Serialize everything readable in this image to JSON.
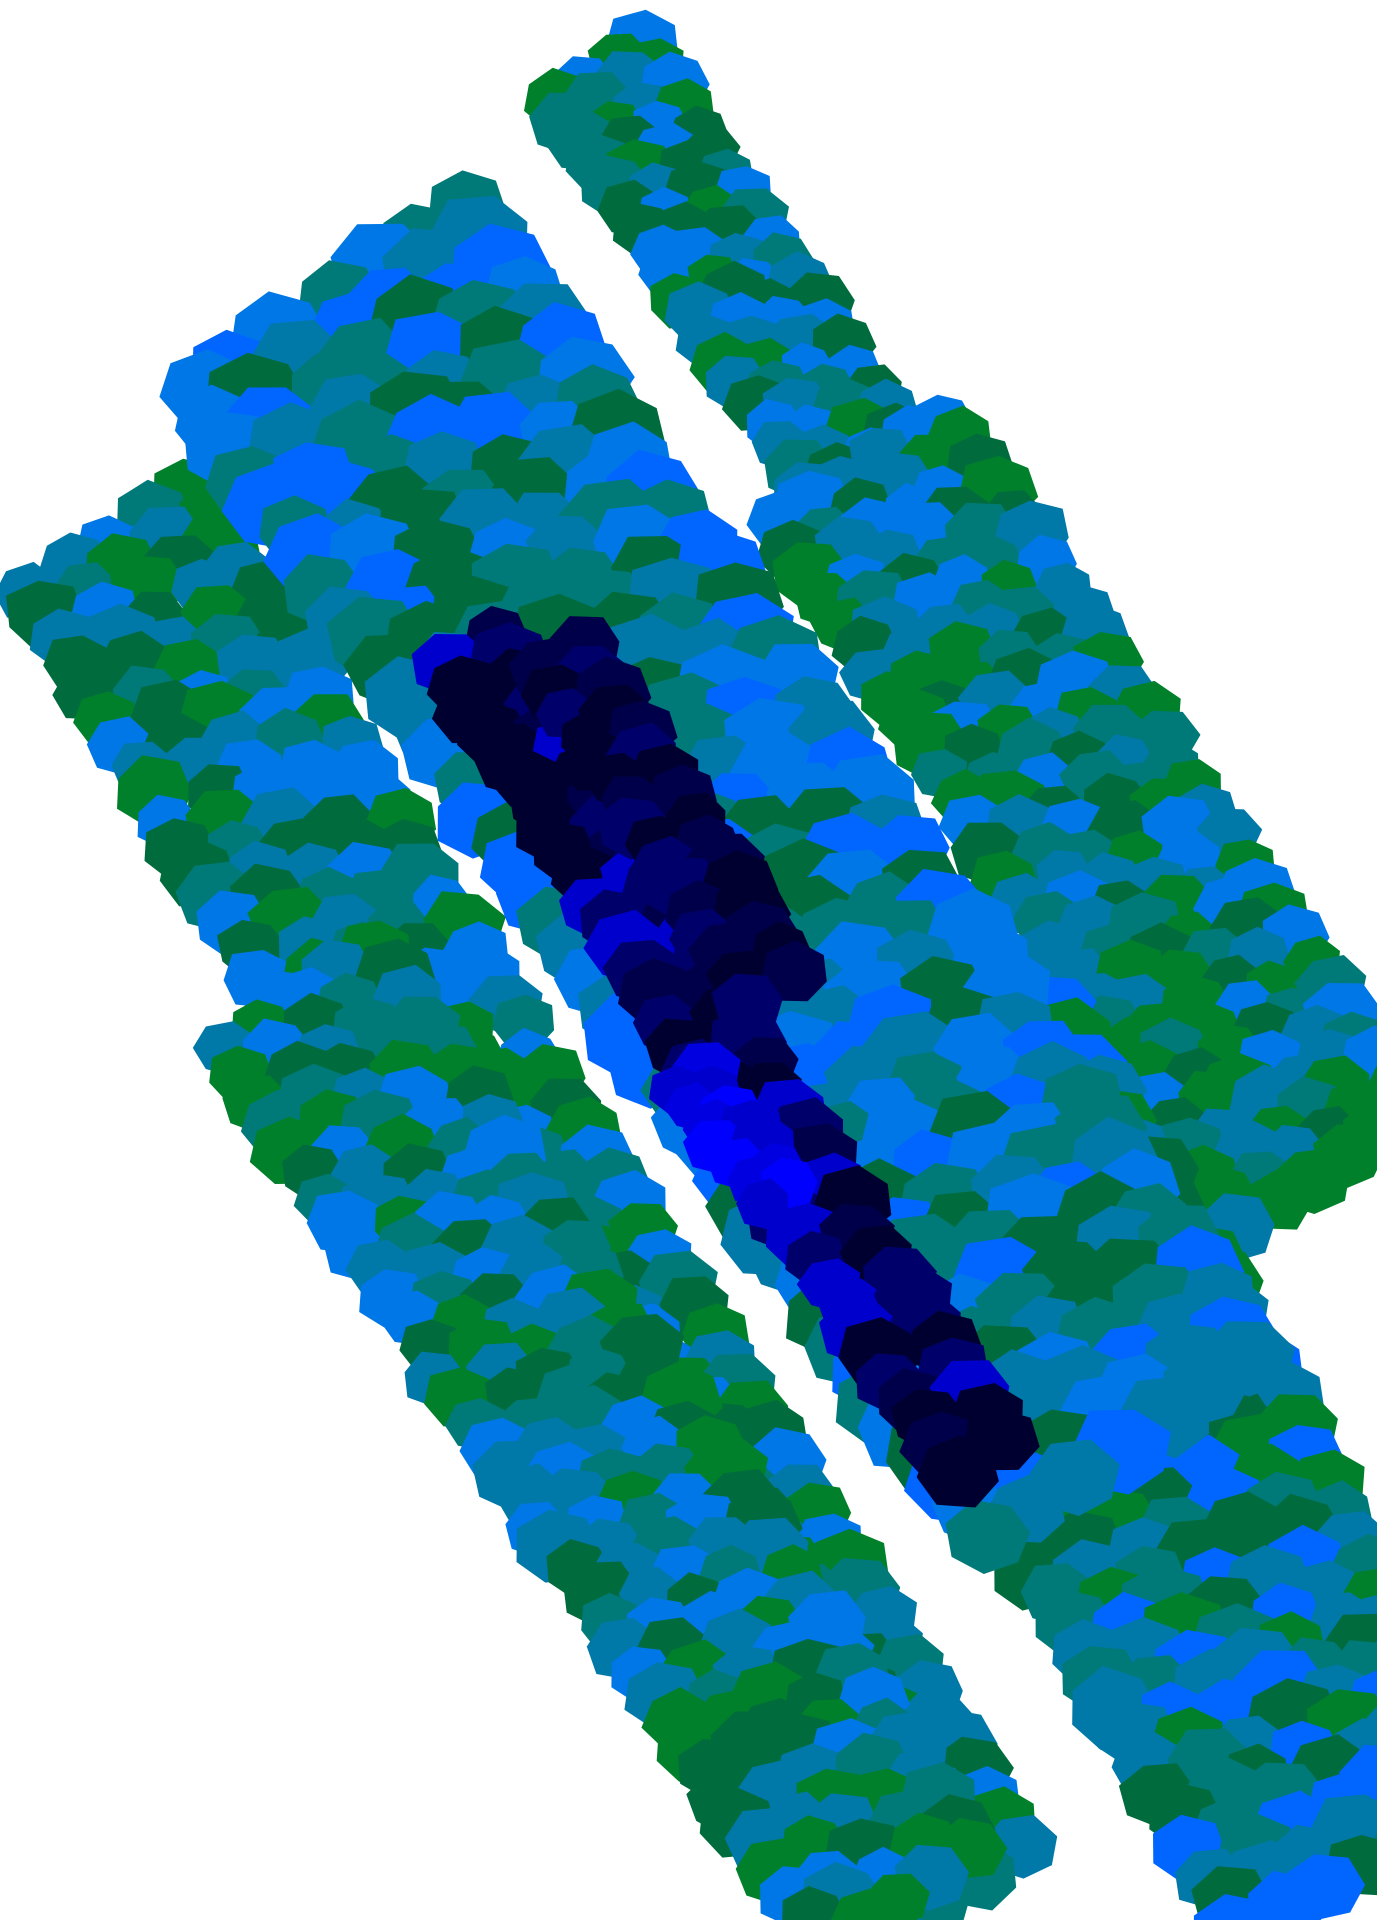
{
  "image": {
    "background": "#ffffff",
    "palette": {
      "deep_green": "#006b3c",
      "green": "#00802a",
      "teal": "#007a78",
      "teal_blue": "#0078a8",
      "sky_blue": "#0077e6",
      "bright_blue": "#0066ff",
      "royal_blue": "#0000cc",
      "navy": "#00006a",
      "midnight": "#000030",
      "pure_blue": "#0000ff"
    },
    "helices": [
      {
        "name": "outer-left-helix",
        "colors": [
          "#007a78",
          "#00802a",
          "#0078a8",
          "#0077e6",
          "#006b3c"
        ]
      },
      {
        "name": "upper-back-helix",
        "colors": [
          "#006b3c",
          "#00802a",
          "#0078a8",
          "#0077e6",
          "#007a78"
        ]
      },
      {
        "name": "right-helix",
        "colors": [
          "#0078a8",
          "#007a78",
          "#0077e6",
          "#006b3c",
          "#00802a"
        ]
      },
      {
        "name": "lower-right-helix",
        "colors": [
          "#006b3c",
          "#0066ff",
          "#0078a8",
          "#00802a",
          "#007a78"
        ]
      },
      {
        "name": "central-helix",
        "colors": [
          "#0077e6",
          "#0078a8",
          "#006b3c",
          "#0066ff",
          "#007a78"
        ]
      },
      {
        "name": "core-strand",
        "colors": [
          "#00006a",
          "#000030",
          "#0000cc",
          "#00004a"
        ]
      }
    ]
  }
}
